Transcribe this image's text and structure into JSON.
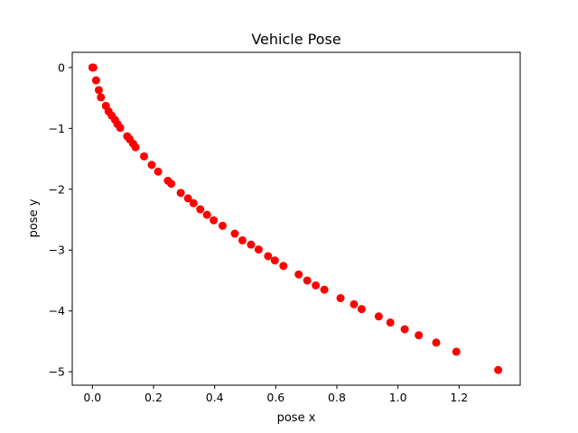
{
  "chart_data": {
    "type": "scatter",
    "title": "Vehicle Pose",
    "xlabel": "pose x",
    "ylabel": "pose y",
    "xlim": [
      -0.066,
      1.4
    ],
    "ylim": [
      -5.22,
      0.25
    ],
    "xticks": [
      0.0,
      0.2,
      0.4,
      0.6,
      0.8,
      1.0,
      1.2
    ],
    "xtick_labels": [
      "0.0",
      "0.2",
      "0.4",
      "0.6",
      "0.8",
      "1.0",
      "1.2"
    ],
    "yticks": [
      0,
      -1,
      -2,
      -3,
      -4,
      -5
    ],
    "ytick_labels": [
      "0",
      "−1",
      "−2",
      "−3",
      "−4",
      "−5"
    ],
    "grid": false,
    "marker_color": "#ff0000",
    "series": [
      {
        "color": "#ff0000",
        "marker": "circle",
        "x": [
          0.0,
          0.003,
          0.012,
          0.021,
          0.028,
          0.044,
          0.053,
          0.063,
          0.074,
          0.082,
          0.091,
          0.114,
          0.122,
          0.133,
          0.141,
          0.169,
          0.194,
          0.215,
          0.247,
          0.258,
          0.289,
          0.313,
          0.331,
          0.353,
          0.375,
          0.397,
          0.426,
          0.466,
          0.491,
          0.519,
          0.544,
          0.575,
          0.597,
          0.625,
          0.675,
          0.703,
          0.731,
          0.759,
          0.812,
          0.856,
          0.881,
          0.937,
          0.975,
          1.022,
          1.068,
          1.125,
          1.191,
          1.328
        ],
        "y": [
          0.0,
          0.0,
          -0.21,
          -0.37,
          -0.49,
          -0.63,
          -0.72,
          -0.79,
          -0.86,
          -0.93,
          -0.99,
          -1.13,
          -1.18,
          -1.25,
          -1.31,
          -1.46,
          -1.6,
          -1.71,
          -1.86,
          -1.91,
          -2.06,
          -2.15,
          -2.23,
          -2.33,
          -2.42,
          -2.51,
          -2.6,
          -2.73,
          -2.84,
          -2.91,
          -2.99,
          -3.1,
          -3.17,
          -3.26,
          -3.4,
          -3.5,
          -3.58,
          -3.65,
          -3.79,
          -3.89,
          -3.97,
          -4.09,
          -4.19,
          -4.3,
          -4.4,
          -4.52,
          -4.67,
          -4.97
        ]
      }
    ]
  }
}
